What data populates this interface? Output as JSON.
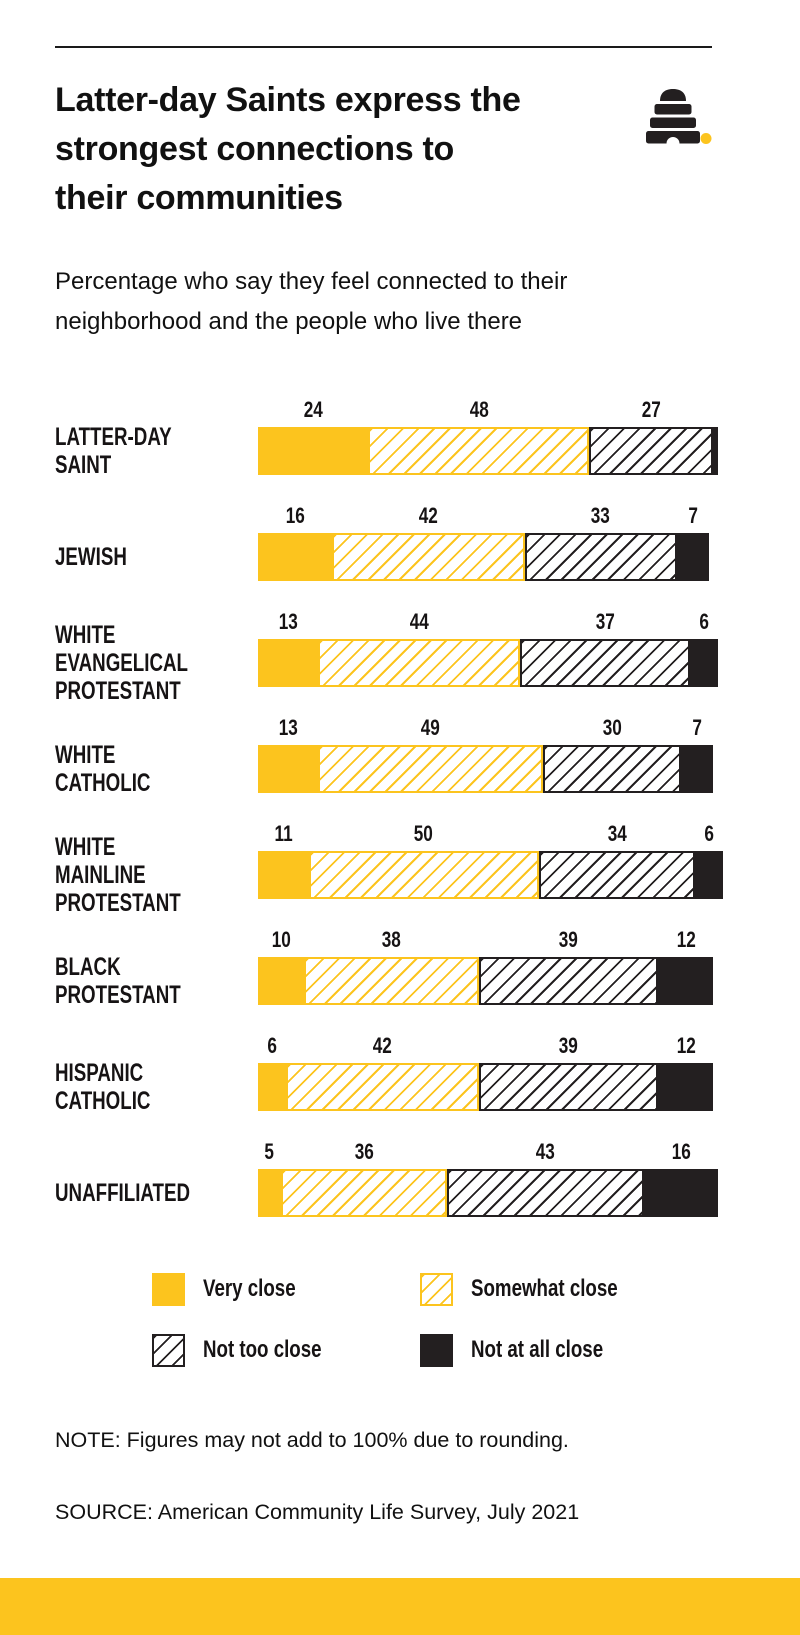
{
  "page": {
    "title": "Latter-day Saints express the\nstrongest connections to\ntheir communities",
    "subtitle": "Percentage who say they feel connected to their\nneighborhood and the people who live there",
    "note": "NOTE: Figures may not add to 100% due to rounding.",
    "source": "SOURCE: American Community Life Survey, July 2021"
  },
  "colors": {
    "accent_yellow": "#FCC41E",
    "ink_black": "#231F20",
    "text": "#111111"
  },
  "logo": {
    "name": "deseret-news-beehive-logo",
    "dot_color": "#FCC41E",
    "hive_color": "#231F20"
  },
  "legend": [
    {
      "label": "Very close",
      "swatch": "solid-yellow"
    },
    {
      "label": "Somewhat close",
      "swatch": "hatch-yellow"
    },
    {
      "label": "Not too close",
      "swatch": "hatch-black"
    },
    {
      "label": "Not at all close",
      "swatch": "solid-black"
    }
  ],
  "chart_data": {
    "type": "bar",
    "variant": "horizontal-stacked",
    "value_unit": "percent",
    "title": "Latter-day Saints express the strongest connections to their communities",
    "subtitle": "Percentage who say they feel connected to their neighborhood and the people who live there",
    "categories": [
      "LATTER-DAY SAINT",
      "JEWISH",
      "WHITE EVANGELICAL\nPROTESTANT",
      "WHITE CATHOLIC",
      "WHITE MAINLINE\nPROTESTANT",
      "BLACK PROTESTANT",
      "HISPANIC CATHOLIC",
      "UNAFFILIATED"
    ],
    "series": [
      {
        "name": "Very close",
        "swatch": "solid-yellow",
        "values": [
          24,
          16,
          13,
          13,
          11,
          10,
          6,
          5
        ]
      },
      {
        "name": "Somewhat close",
        "swatch": "hatch-yellow",
        "values": [
          48,
          42,
          44,
          49,
          50,
          38,
          42,
          36
        ]
      },
      {
        "name": "Not too close",
        "swatch": "hatch-black",
        "values": [
          27,
          33,
          37,
          30,
          34,
          39,
          39,
          43
        ]
      },
      {
        "name": "Not at all close",
        "swatch": "solid-black",
        "values": [
          1,
          7,
          6,
          7,
          6,
          12,
          12,
          16
        ]
      }
    ],
    "value_labels_shown_min": 2,
    "xlim": [
      0,
      100
    ],
    "grid": false,
    "legend_position": "below"
  }
}
